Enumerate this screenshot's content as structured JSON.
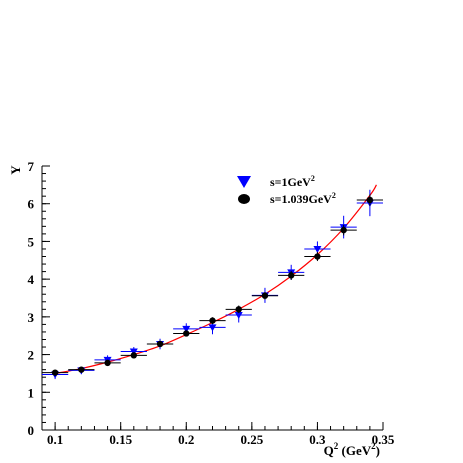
{
  "chart_data": {
    "type": "scatter",
    "title": "",
    "xlabel": "Q",
    "xlabel_sup": "2",
    "xlabel_unit_open": " (GeV",
    "xlabel_unit_sup": "2",
    "xlabel_unit_close": ")",
    "ylabel": "Y",
    "xlim": [
      0.09,
      0.35
    ],
    "ylim": [
      0,
      7
    ],
    "grid": false,
    "legend_position": "top-right",
    "x_ticks": [
      0.1,
      0.15,
      0.2,
      0.25,
      0.3,
      0.35
    ],
    "x_tick_labels": [
      "0.1",
      "0.15",
      "0.2",
      "0.25",
      "0.3",
      "0.35"
    ],
    "y_ticks": [
      0,
      1,
      2,
      3,
      4,
      5,
      6,
      7
    ],
    "y_tick_labels": [
      "0",
      "1",
      "2",
      "3",
      "4",
      "5",
      "6",
      "7"
    ],
    "x_bin_halfwidth": 0.01,
    "series": [
      {
        "label_main": "s=1GeV",
        "label_sup": "2",
        "marker": "triangle-down",
        "color": "#0000ff",
        "x": [
          0.1,
          0.12,
          0.14,
          0.16,
          0.18,
          0.2,
          0.22,
          0.24,
          0.26,
          0.28,
          0.3,
          0.32,
          0.34
        ],
        "y": [
          1.47,
          1.58,
          1.86,
          2.08,
          2.28,
          2.68,
          2.72,
          3.05,
          3.57,
          4.18,
          4.8,
          5.38,
          6.02
        ],
        "yerr": [
          0.12,
          0.1,
          0.12,
          0.12,
          0.14,
          0.15,
          0.18,
          0.2,
          0.2,
          0.2,
          0.2,
          0.3,
          0.35
        ]
      },
      {
        "label_main": "s=1.039GeV",
        "label_sup": "2",
        "marker": "circle",
        "color": "#000000",
        "x": [
          0.1,
          0.12,
          0.14,
          0.16,
          0.18,
          0.2,
          0.22,
          0.24,
          0.26,
          0.28,
          0.3,
          0.32,
          0.34
        ],
        "y": [
          1.52,
          1.6,
          1.78,
          1.98,
          2.28,
          2.56,
          2.9,
          3.2,
          3.56,
          4.1,
          4.6,
          5.3,
          6.1
        ],
        "yerr": [
          0.06,
          0.06,
          0.06,
          0.07,
          0.08,
          0.08,
          0.09,
          0.1,
          0.1,
          0.12,
          0.12,
          0.14,
          0.15
        ]
      }
    ],
    "fit": {
      "color": "#ff0000",
      "x": [
        0.1,
        0.12,
        0.14,
        0.16,
        0.18,
        0.2,
        0.22,
        0.24,
        0.26,
        0.28,
        0.3,
        0.32,
        0.34,
        0.345
      ],
      "y": [
        1.5,
        1.63,
        1.8,
        2.0,
        2.23,
        2.53,
        2.85,
        3.2,
        3.6,
        4.08,
        4.65,
        5.35,
        6.22,
        6.5
      ]
    }
  }
}
